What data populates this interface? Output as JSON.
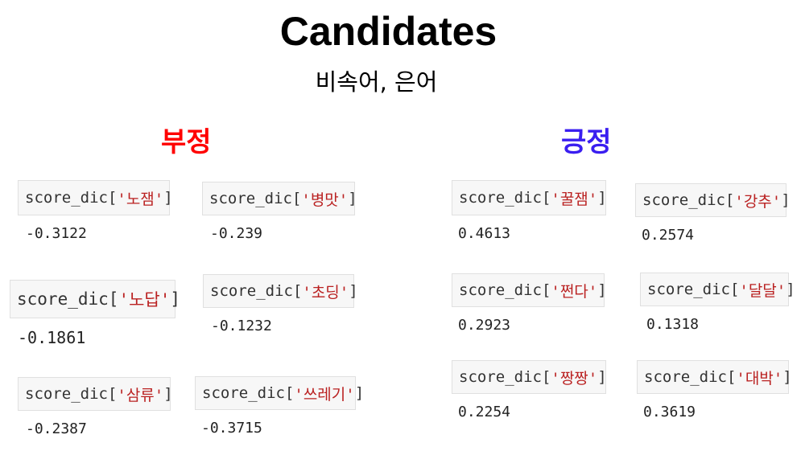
{
  "title": "Candidates",
  "subtitle": "비속어, 은어",
  "negative": {
    "heading": "부정",
    "color": "#ff0000",
    "items": [
      {
        "prefix": "score_dic[",
        "key": "'노잼'",
        "suffix": "]",
        "value": "-0.3122"
      },
      {
        "prefix": "score_dic[",
        "key": "'병맛'",
        "suffix": "]",
        "value": "-0.239"
      },
      {
        "prefix": "score_dic[",
        "key": "'노답'",
        "suffix": "]",
        "value": "-0.1861"
      },
      {
        "prefix": "score_dic[",
        "key": "'초딩'",
        "suffix": "]",
        "value": "-0.1232"
      },
      {
        "prefix": "score_dic[",
        "key": "'삼류'",
        "suffix": "]",
        "value": "-0.2387"
      },
      {
        "prefix": "score_dic[",
        "key": "'쓰레기'",
        "suffix": "]",
        "value": "-0.3715"
      }
    ]
  },
  "positive": {
    "heading": "긍정",
    "color": "#3a1ef0",
    "items": [
      {
        "prefix": "score_dic[",
        "key": "'꿀잼'",
        "suffix": "]",
        "value": "0.4613"
      },
      {
        "prefix": "score_dic[",
        "key": "'강추'",
        "suffix": "]",
        "value": "0.2574"
      },
      {
        "prefix": "score_dic[",
        "key": "'쩐다'",
        "suffix": "]",
        "value": "0.2923"
      },
      {
        "prefix": "score_dic[",
        "key": "'달달'",
        "suffix": "]",
        "value": "0.1318"
      },
      {
        "prefix": "score_dic[",
        "key": "'짱짱'",
        "suffix": "]",
        "value": "0.2254"
      },
      {
        "prefix": "score_dic[",
        "key": "'대박'",
        "suffix": "]",
        "value": "0.3619"
      }
    ]
  }
}
